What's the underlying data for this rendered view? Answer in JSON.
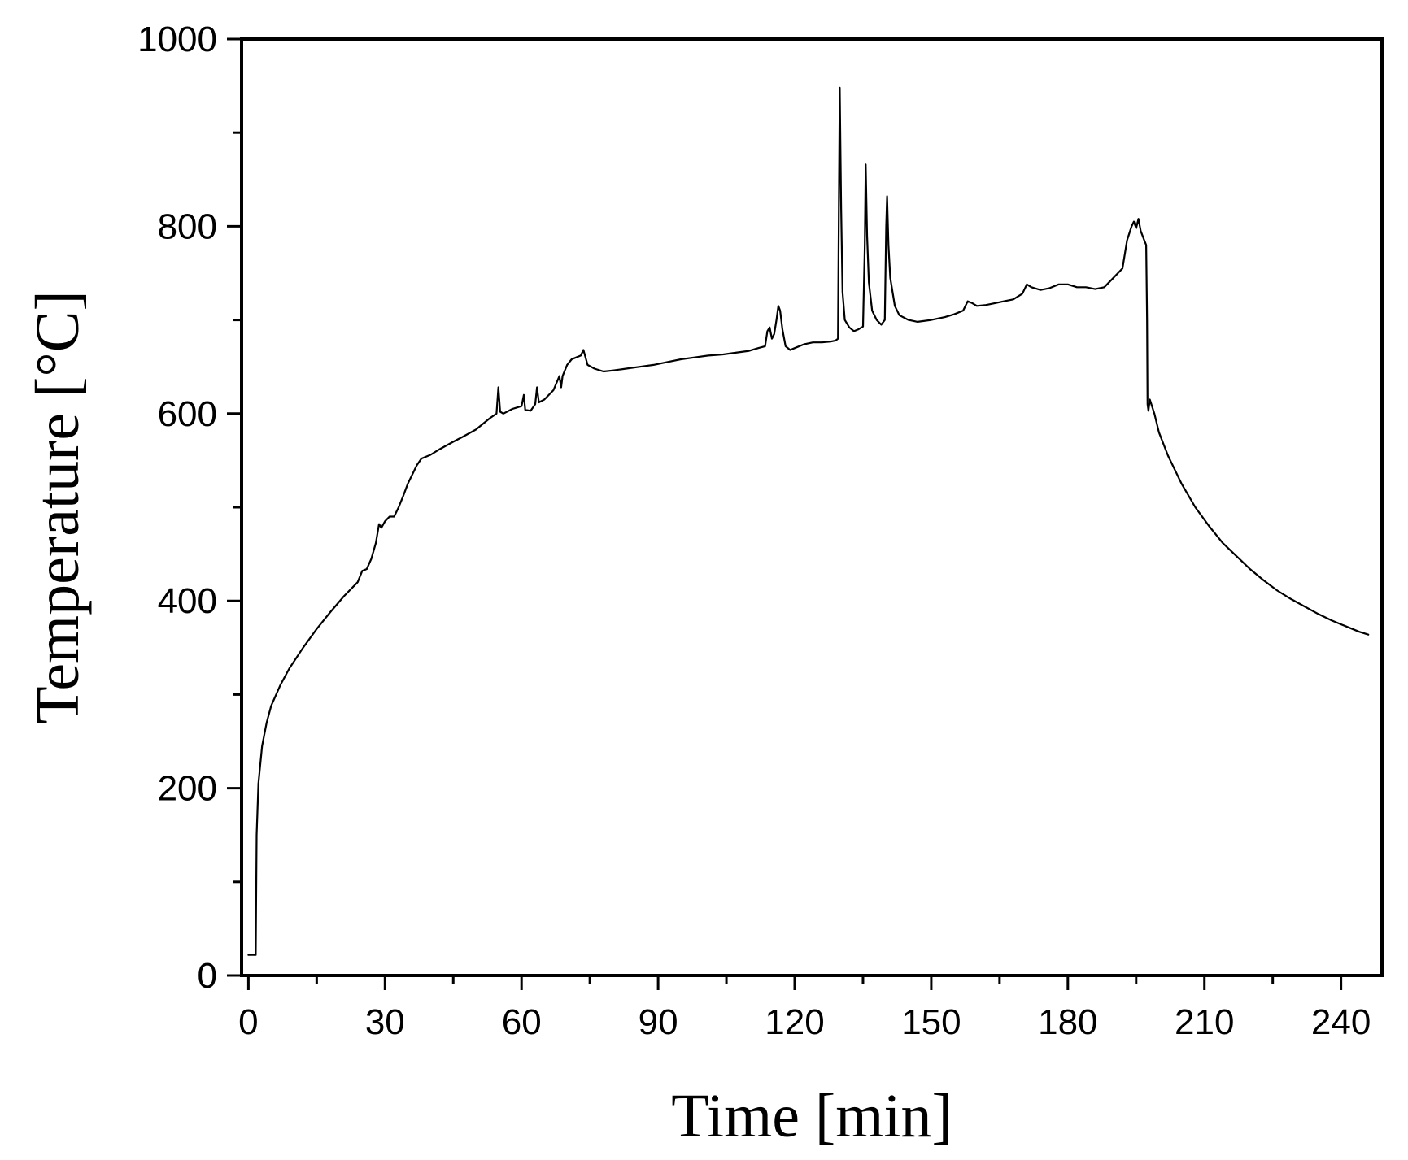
{
  "chart_data": {
    "type": "line",
    "title": "",
    "xlabel": "Time [min]",
    "ylabel": "Temperature [°C]",
    "xlim": [
      -1.5,
      249
    ],
    "ylim": [
      0,
      1000
    ],
    "x_ticks": [
      0,
      30,
      60,
      90,
      120,
      150,
      180,
      210,
      240
    ],
    "x_tick_labels": [
      "0",
      "30",
      "60",
      "90",
      "120",
      "150",
      "180",
      "210",
      "240"
    ],
    "y_ticks": [
      0,
      200,
      400,
      600,
      800,
      1000
    ],
    "y_tick_labels": [
      "0",
      "200",
      "400",
      "600",
      "800",
      "1000"
    ],
    "x_minor_step": 15,
    "y_minor_step": 100,
    "grid": false,
    "legend": "none",
    "series": [
      {
        "color": "#000000",
        "points": [
          [
            0,
            22
          ],
          [
            1.6,
            22
          ],
          [
            1.8,
            150
          ],
          [
            2.2,
            205
          ],
          [
            3,
            245
          ],
          [
            4,
            270
          ],
          [
            5,
            288
          ],
          [
            7,
            310
          ],
          [
            9,
            328
          ],
          [
            12,
            350
          ],
          [
            15,
            370
          ],
          [
            18,
            388
          ],
          [
            21,
            405
          ],
          [
            24,
            420
          ],
          [
            25,
            432
          ],
          [
            26,
            434
          ],
          [
            27,
            445
          ],
          [
            28,
            462
          ],
          [
            28.7,
            482
          ],
          [
            29.2,
            478
          ],
          [
            30,
            485
          ],
          [
            31,
            490
          ],
          [
            32,
            490
          ],
          [
            33,
            500
          ],
          [
            34,
            512
          ],
          [
            35,
            525
          ],
          [
            36,
            535
          ],
          [
            37,
            545
          ],
          [
            38,
            552
          ],
          [
            40,
            556
          ],
          [
            42,
            562
          ],
          [
            45,
            570
          ],
          [
            47,
            575
          ],
          [
            50,
            583
          ],
          [
            53,
            595
          ],
          [
            54.5,
            600
          ],
          [
            54.9,
            628
          ],
          [
            55.3,
            602
          ],
          [
            56,
            600
          ],
          [
            58,
            605
          ],
          [
            60,
            608
          ],
          [
            60.5,
            620
          ],
          [
            60.8,
            604
          ],
          [
            62,
            603
          ],
          [
            63,
            610
          ],
          [
            63.4,
            628
          ],
          [
            63.8,
            612
          ],
          [
            65,
            615
          ],
          [
            67,
            625
          ],
          [
            68.3,
            640
          ],
          [
            68.7,
            628
          ],
          [
            69,
            640
          ],
          [
            70,
            652
          ],
          [
            71,
            658
          ],
          [
            72,
            660
          ],
          [
            73,
            662
          ],
          [
            73.6,
            668
          ],
          [
            74.5,
            652
          ],
          [
            76,
            648
          ],
          [
            78,
            645
          ],
          [
            80,
            646
          ],
          [
            83,
            648
          ],
          [
            86,
            650
          ],
          [
            89,
            652
          ],
          [
            92,
            655
          ],
          [
            95,
            658
          ],
          [
            98,
            660
          ],
          [
            101,
            662
          ],
          [
            104,
            663
          ],
          [
            107,
            665
          ],
          [
            110,
            667
          ],
          [
            112,
            670
          ],
          [
            113.5,
            672
          ],
          [
            114,
            688
          ],
          [
            114.5,
            692
          ],
          [
            115,
            680
          ],
          [
            115.5,
            685
          ],
          [
            116,
            700
          ],
          [
            116.4,
            715
          ],
          [
            116.8,
            710
          ],
          [
            117.3,
            690
          ],
          [
            118,
            672
          ],
          [
            119,
            668
          ],
          [
            120,
            670
          ],
          [
            122,
            674
          ],
          [
            124,
            676
          ],
          [
            126,
            676
          ],
          [
            128,
            677
          ],
          [
            129,
            678
          ],
          [
            129.5,
            680
          ],
          [
            129.7,
            820
          ],
          [
            129.9,
            948
          ],
          [
            130.2,
            820
          ],
          [
            130.5,
            730
          ],
          [
            131,
            700
          ],
          [
            132,
            692
          ],
          [
            133,
            688
          ],
          [
            134,
            690
          ],
          [
            135,
            693
          ],
          [
            135.4,
            780
          ],
          [
            135.6,
            866
          ],
          [
            135.9,
            790
          ],
          [
            136.3,
            740
          ],
          [
            137,
            710
          ],
          [
            138,
            700
          ],
          [
            139,
            695
          ],
          [
            139.8,
            700
          ],
          [
            140.1,
            800
          ],
          [
            140.3,
            832
          ],
          [
            140.6,
            780
          ],
          [
            141,
            745
          ],
          [
            142,
            715
          ],
          [
            143,
            705
          ],
          [
            145,
            700
          ],
          [
            147,
            698
          ],
          [
            150,
            700
          ],
          [
            153,
            703
          ],
          [
            155,
            706
          ],
          [
            157,
            710
          ],
          [
            158,
            720
          ],
          [
            159,
            718
          ],
          [
            160,
            715
          ],
          [
            162,
            716
          ],
          [
            164,
            718
          ],
          [
            166,
            720
          ],
          [
            168,
            722
          ],
          [
            170,
            728
          ],
          [
            171,
            738
          ],
          [
            172,
            735
          ],
          [
            174,
            732
          ],
          [
            176,
            734
          ],
          [
            178,
            738
          ],
          [
            180,
            738
          ],
          [
            182,
            735
          ],
          [
            184,
            735
          ],
          [
            186,
            733
          ],
          [
            188,
            735
          ],
          [
            190,
            745
          ],
          [
            191,
            750
          ],
          [
            192,
            755
          ],
          [
            192.5,
            770
          ],
          [
            193,
            785
          ],
          [
            194,
            800
          ],
          [
            194.5,
            805
          ],
          [
            195,
            798
          ],
          [
            195.5,
            808
          ],
          [
            196,
            795
          ],
          [
            196.4,
            790
          ],
          [
            196.8,
            785
          ],
          [
            197.2,
            780
          ],
          [
            197.4,
            700
          ],
          [
            197.5,
            610
          ],
          [
            197.7,
            603
          ],
          [
            198,
            615
          ],
          [
            199,
            600
          ],
          [
            200,
            580
          ],
          [
            202,
            555
          ],
          [
            205,
            525
          ],
          [
            208,
            500
          ],
          [
            211,
            480
          ],
          [
            214,
            462
          ],
          [
            217,
            448
          ],
          [
            220,
            434
          ],
          [
            223,
            422
          ],
          [
            226,
            411
          ],
          [
            229,
            402
          ],
          [
            232,
            394
          ],
          [
            235,
            386
          ],
          [
            238,
            379
          ],
          [
            241,
            373
          ],
          [
            244,
            367
          ],
          [
            246,
            364
          ]
        ]
      }
    ]
  }
}
